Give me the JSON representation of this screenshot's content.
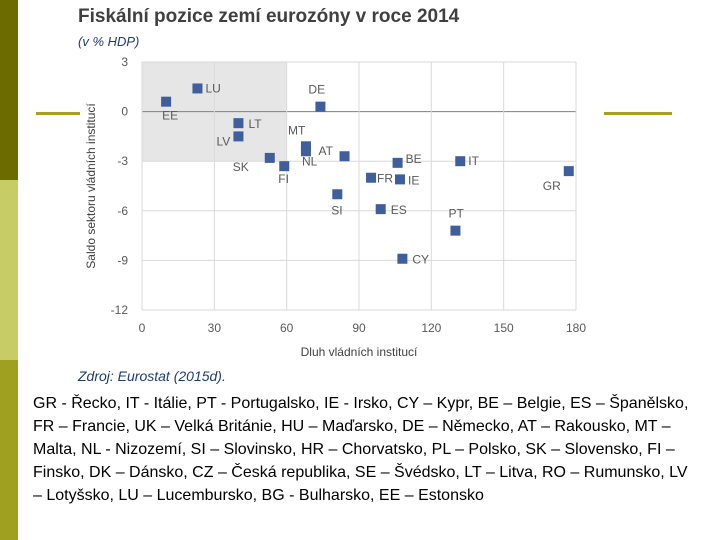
{
  "colors": {
    "accent_dark": "#6b6b00",
    "accent_light": "#c8cc66",
    "marker": "#3e5f9c",
    "highlight": "#e6e6e6"
  },
  "chart_data": {
    "type": "scatter",
    "title": "Fiskální pozice zemí eurozóny v roce 2014",
    "subtitle": "(v % HDP)",
    "xlabel": "Dluh vládních institucí",
    "ylabel": "Saldo sektoru vládních institucí",
    "xlim": [
      0,
      180
    ],
    "ylim": [
      -12,
      3
    ],
    "xticks": [
      0,
      30,
      60,
      90,
      120,
      150,
      180
    ],
    "yticks": [
      3,
      0,
      -3,
      -6,
      -9,
      -12
    ],
    "shaded_region": {
      "x": [
        0,
        60
      ],
      "y": [
        -3,
        3
      ]
    },
    "points": [
      {
        "label": "LU",
        "x": 23,
        "y": 1.4
      },
      {
        "label": "EE",
        "x": 10,
        "y": 0.6
      },
      {
        "label": "DE",
        "x": 74,
        "y": 0.3
      },
      {
        "label": "LT",
        "x": 40,
        "y": -0.7
      },
      {
        "label": "LV",
        "x": 40,
        "y": -1.5
      },
      {
        "label": "MT",
        "x": 68,
        "y": -2.1
      },
      {
        "label": "AT",
        "x": 84,
        "y": -2.7
      },
      {
        "label": "NL",
        "x": 68,
        "y": -2.4
      },
      {
        "label": "SK",
        "x": 53,
        "y": -2.8
      },
      {
        "label": "FI",
        "x": 59,
        "y": -3.3
      },
      {
        "label": "BE",
        "x": 106,
        "y": -3.1
      },
      {
        "label": "IT",
        "x": 132,
        "y": -3.0
      },
      {
        "label": "FR",
        "x": 95,
        "y": -4.0
      },
      {
        "label": "IE",
        "x": 107,
        "y": -4.1
      },
      {
        "label": "GR",
        "x": 177,
        "y": -3.6
      },
      {
        "label": "SI",
        "x": 81,
        "y": -5.0
      },
      {
        "label": "ES",
        "x": 99,
        "y": -5.9
      },
      {
        "label": "PT",
        "x": 130,
        "y": -7.2
      },
      {
        "label": "CY",
        "x": 108,
        "y": -8.9
      }
    ],
    "source": "Zdroj: Eurostat (2015d)."
  },
  "legend_text": "GR - Řecko, IT - Itálie, PT - Portugalsko, IE - Irsko, CY – Kypr, BE – Belgie, ES – Španělsko, FR – Francie, UK – Velká Británie, HU – Maďarsko, DE – Německo, AT – Rakousko, MT – Malta, NL - Nizozemí, SI – Slovinsko, HR – Chorvatsko, PL – Polsko, SK – Slovensko, FI – Finsko, DK – Dánsko, CZ – Česká republika, SE – Švédsko, LT – Litva, RO – Rumunsko, LV – Lotyšsko, LU – Lucembursko, BG - Bulharsko, EE – Estonsko"
}
